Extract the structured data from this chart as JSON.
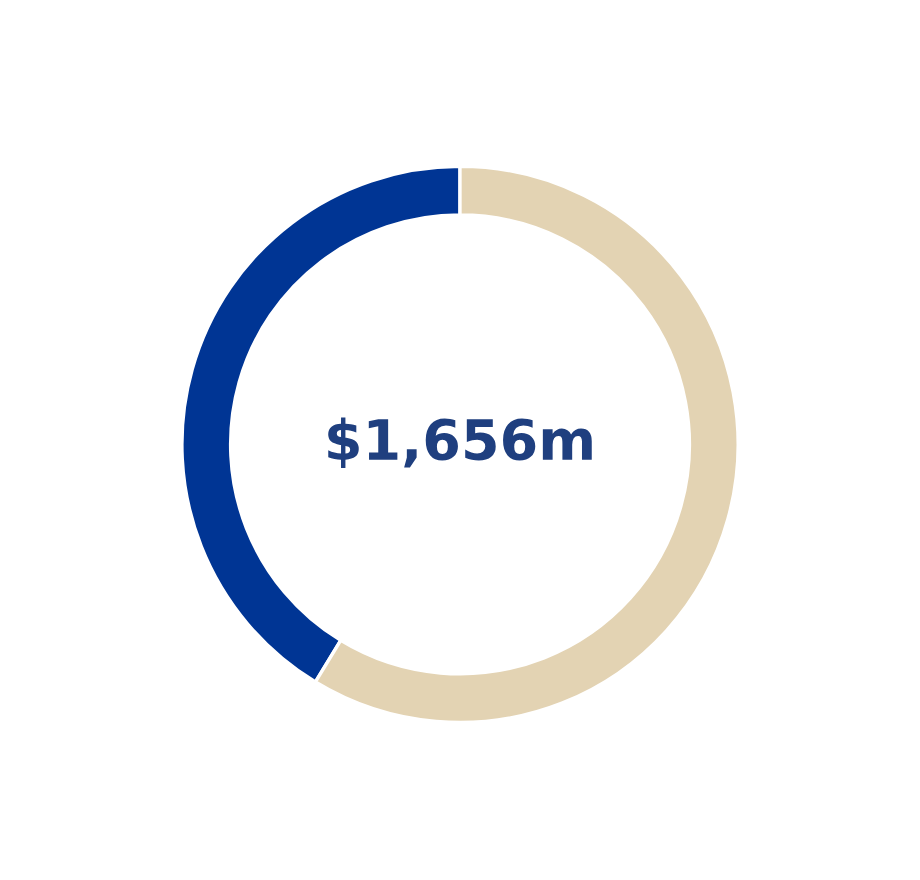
{
  "chart_data": {
    "type": "donut",
    "categories": [
      null,
      null
    ],
    "values": [
      41.3,
      58.7
    ],
    "colors": [
      "#003594",
      "#e3d3b3"
    ],
    "annotations": [
      "$1,656m"
    ]
  }
}
